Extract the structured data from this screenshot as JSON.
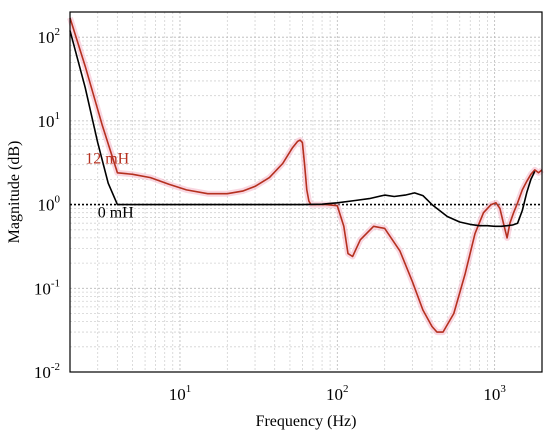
{
  "chart_data": {
    "type": "line",
    "title": "",
    "xlabel": "Frequency (Hz)",
    "ylabel": "Magnitude (dB)",
    "x_scale": "log",
    "y_scale": "log",
    "xlim": [
      2,
      2000
    ],
    "ylim": [
      0.01,
      200
    ],
    "grid": true,
    "x_ticks": [
      {
        "base": "10",
        "exp": "1",
        "value": 10
      },
      {
        "base": "10",
        "exp": "2",
        "value": 100
      },
      {
        "base": "10",
        "exp": "3",
        "value": 1000
      }
    ],
    "y_ticks": [
      {
        "base": "10",
        "exp": "2",
        "value": 100
      },
      {
        "base": "10",
        "exp": "1",
        "value": 10
      },
      {
        "base": "10",
        "exp": "0",
        "value": 1
      },
      {
        "base": "10",
        "exp": "-1",
        "value": 0.1
      },
      {
        "base": "10",
        "exp": "-2",
        "value": 0.01
      }
    ],
    "reference_line": {
      "y": 1,
      "style": "dotted",
      "color": "#000000"
    },
    "annotations": [
      {
        "text": "12 mH",
        "color": "#b5301f",
        "x": 2.5,
        "y": 3.1
      },
      {
        "text": "0 mH",
        "color": "#000000",
        "x": 3.0,
        "y": 0.7
      }
    ],
    "series": [
      {
        "color": "#b5301f",
        "x": [
          2.0,
          2.5,
          3.2,
          4.0,
          5.0,
          6.5,
          8.5,
          11,
          15,
          20,
          25,
          30,
          37,
          45,
          52,
          56,
          58,
          60,
          62,
          64,
          66,
          68,
          70,
          75,
          85,
          100,
          110,
          117,
          125,
          140,
          170,
          200,
          250,
          300,
          350,
          400,
          430,
          470,
          550,
          650,
          750,
          850,
          950,
          1020,
          1080,
          1150,
          1200,
          1250,
          1320,
          1400,
          1500,
          1600,
          1700,
          1800,
          1900,
          2000
        ],
        "y": [
          170,
          45,
          9,
          2.4,
          2.3,
          2.1,
          1.75,
          1.5,
          1.35,
          1.35,
          1.45,
          1.65,
          2.1,
          3.1,
          4.8,
          5.7,
          5.9,
          5.5,
          3.0,
          1.5,
          1.1,
          1.0,
          1.0,
          1.0,
          1.0,
          0.97,
          0.55,
          0.26,
          0.24,
          0.38,
          0.55,
          0.52,
          0.28,
          0.12,
          0.055,
          0.035,
          0.03,
          0.03,
          0.05,
          0.15,
          0.45,
          0.8,
          1.0,
          1.05,
          0.9,
          0.55,
          0.4,
          0.6,
          0.8,
          1.05,
          1.5,
          1.9,
          2.3,
          2.6,
          2.4,
          2.6
        ]
      },
      {
        "color": "#000000",
        "x": [
          2.0,
          2.5,
          3.0,
          3.5,
          4.0,
          5,
          10,
          30,
          60,
          80,
          100,
          130,
          160,
          200,
          230,
          270,
          310,
          350,
          400,
          500,
          600,
          700,
          800,
          900,
          1000,
          1100,
          1200,
          1300,
          1400,
          1500,
          1600,
          1700,
          1800
        ],
        "y": [
          120,
          25,
          5.5,
          1.8,
          1.0,
          1.0,
          1.0,
          1.0,
          1.0,
          1.01,
          1.05,
          1.12,
          1.18,
          1.3,
          1.25,
          1.3,
          1.38,
          1.28,
          1.0,
          0.72,
          0.62,
          0.58,
          0.56,
          0.56,
          0.55,
          0.55,
          0.56,
          0.57,
          0.6,
          0.85,
          1.4,
          2.0,
          2.5
        ]
      }
    ]
  }
}
